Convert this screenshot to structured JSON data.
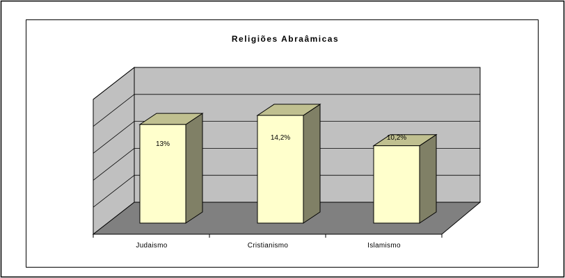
{
  "chart_data": {
    "type": "bar",
    "title": "Religiões Abraâmicas",
    "categories": [
      "Judaismo",
      "Cristianismo",
      "Islamismo"
    ],
    "values": [
      13,
      14.2,
      10.2
    ],
    "data_labels": [
      "13%",
      "14,2%",
      "10,2%"
    ],
    "ylim": [
      0,
      16
    ],
    "grid": true,
    "legend": "none",
    "style": "3d-column"
  },
  "colors": {
    "bar_front": "#ffffcc",
    "bar_side": "#808066",
    "bar_top": "#c0c090",
    "back_wall": "#c0c0c0",
    "side_wall": "#c0c0c0",
    "floor": "#808080"
  }
}
